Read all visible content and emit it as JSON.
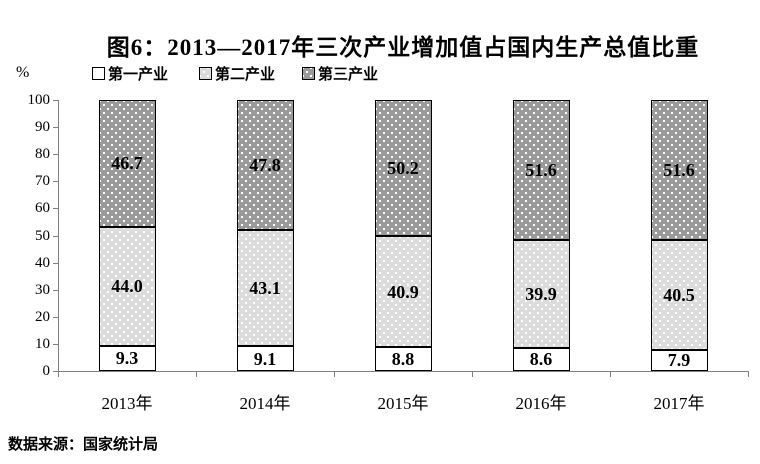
{
  "title": "图6：2013—2017年三次产业增加值占国内生产总值比重",
  "y_axis_unit": "%",
  "source": "数据来源：国家统计局",
  "legend": {
    "items": [
      {
        "label": "第一产业",
        "swatch": "white"
      },
      {
        "label": "第二产业",
        "swatch": "light-dotted"
      },
      {
        "label": "第三产业",
        "swatch": "dark-dotted"
      }
    ]
  },
  "chart_data": {
    "type": "bar",
    "stacked": true,
    "title": "图6：2013—2017年三次产业增加值占国内生产总值比重",
    "categories": [
      "2013年",
      "2014年",
      "2015年",
      "2016年",
      "2017年"
    ],
    "series": [
      {
        "name": "第一产业",
        "values": [
          9.3,
          9.1,
          8.8,
          8.6,
          7.9
        ]
      },
      {
        "name": "第二产业",
        "values": [
          44.0,
          43.1,
          40.9,
          39.9,
          40.5
        ]
      },
      {
        "name": "第三产业",
        "values": [
          46.7,
          47.8,
          50.2,
          51.6,
          51.6
        ]
      }
    ],
    "xlabel": "",
    "ylabel": "%",
    "ylim": [
      0,
      100
    ],
    "ytick_step": 10,
    "grid": false,
    "legend_position": "top",
    "colors": {
      "primary_fill": "#ffffff",
      "secondary_fill": "#dcdcdc",
      "tertiary_fill": "#9a9a9a",
      "pattern_dot": "#ffffff",
      "bar_border": "#000000",
      "axis": "#808080",
      "text": "#000000",
      "background": "#ffffff"
    }
  }
}
